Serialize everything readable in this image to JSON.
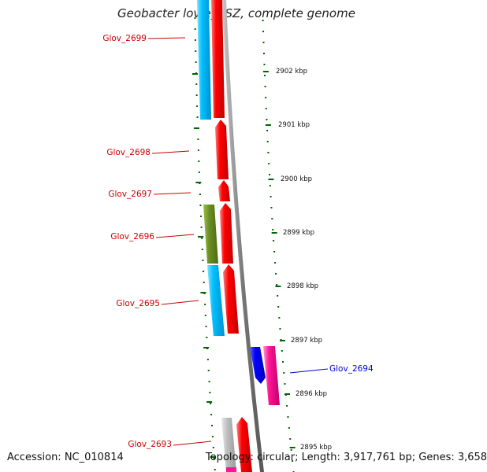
{
  "title": "Geobacter lovleyi SZ, complete genome",
  "accession": "Accession: NC_010814",
  "topology": "Topology: circular; Length: 3,917,761 bp; Genes: 3,658",
  "colors": {
    "cds_forward_red": "#ff0000",
    "cds_cyan": "#00bfff",
    "cds_olive": "#6b8e23",
    "cds_blue": "#0000ff",
    "cds_magenta": "#ff1493",
    "pseudo_grey": "#bdbdbd",
    "backbone": "#808080",
    "tick_green": "#006400",
    "gene_label_red": "#cc0000",
    "gene_label_blue": "#0000cc"
  },
  "ticks": [
    {
      "label": "2902 kbp",
      "kbp": 2902
    },
    {
      "label": "2901 kbp",
      "kbp": 2901
    },
    {
      "label": "2900 kbp",
      "kbp": 2900
    },
    {
      "label": "2899 kbp",
      "kbp": 2899
    },
    {
      "label": "2898 kbp",
      "kbp": 2898
    },
    {
      "label": "2897 kbp",
      "kbp": 2897
    },
    {
      "label": "2896 kbp",
      "kbp": 2896
    },
    {
      "label": "2895 kbp",
      "kbp": 2895
    }
  ],
  "genes": [
    {
      "label": "Glov_2699",
      "color": "gene_label_red"
    },
    {
      "label": "Glov_2698",
      "color": "gene_label_red"
    },
    {
      "label": "Glov_2697",
      "color": "gene_label_red"
    },
    {
      "label": "Glov_2696",
      "color": "gene_label_red"
    },
    {
      "label": "Glov_2695",
      "color": "gene_label_red"
    },
    {
      "label": "Glov_2694",
      "color": "gene_label_blue"
    },
    {
      "label": "Glov_2693",
      "color": "gene_label_red"
    }
  ]
}
